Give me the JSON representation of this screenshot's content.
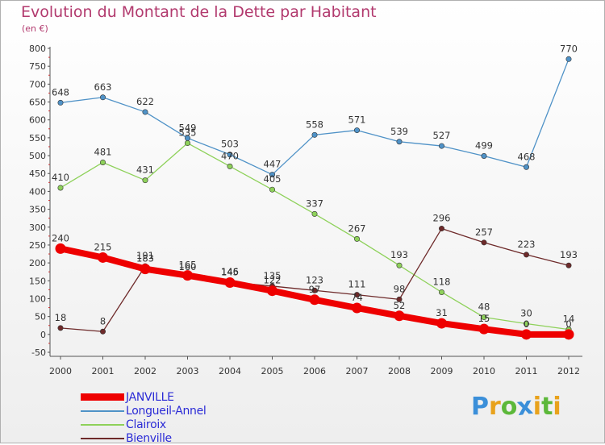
{
  "title": "Evolution du Montant de la Dette par Habitant",
  "subtitle": "(en €)",
  "logo": {
    "text": "Proxiti",
    "letters": [
      "P",
      "r",
      "o",
      "x",
      "i",
      "t",
      "i"
    ],
    "colors": [
      "#3b8fd9",
      "#e8a21c",
      "#5cb83a",
      "#3b8fd9",
      "#e8a21c",
      "#5cb83a",
      "#e8a21c"
    ]
  },
  "chart_data": {
    "type": "line",
    "title": "Evolution du Montant de la Dette par Habitant",
    "ylabel": "(en €)",
    "xlabel": "",
    "ylim": [
      -50,
      800
    ],
    "yticks": [
      -50,
      0,
      50,
      100,
      150,
      200,
      250,
      300,
      350,
      400,
      450,
      500,
      550,
      600,
      650,
      700,
      750,
      800
    ],
    "categories": [
      "2000",
      "2001",
      "2002",
      "2003",
      "2004",
      "2005",
      "2006",
      "2007",
      "2008",
      "2009",
      "2010",
      "2011",
      "2012"
    ],
    "series": [
      {
        "name": "JANVILLE",
        "color": "#ee0000",
        "thick": true,
        "values": [
          240,
          215,
          183,
          165,
          145,
          122,
          97,
          74,
          52,
          31,
          15,
          0,
          0
        ],
        "labels": [
          "240",
          "215",
          "183",
          "165",
          "145",
          "122",
          "97",
          "74",
          "52",
          "31",
          "15",
          "0",
          "0"
        ]
      },
      {
        "name": "Longueil-Annel",
        "color": "#4f92c7",
        "thick": false,
        "values": [
          648,
          663,
          622,
          549,
          503,
          447,
          558,
          571,
          539,
          527,
          499,
          468,
          770
        ],
        "labels": [
          "648",
          "663",
          "622",
          "549",
          "503",
          "447",
          "558",
          "571",
          "539",
          "527",
          "499",
          "468",
          "770"
        ]
      },
      {
        "name": "Clairoix",
        "color": "#8ed15a",
        "thick": false,
        "values": [
          410,
          481,
          431,
          535,
          470,
          405,
          337,
          267,
          193,
          118,
          48,
          30,
          14
        ],
        "labels": [
          "410",
          "481",
          "431",
          "535",
          "470",
          "405",
          "337",
          "267",
          "193",
          "118",
          "48",
          "30",
          "14"
        ]
      },
      {
        "name": "Bienville",
        "color": "#6e2a2a",
        "thick": false,
        "values": [
          18,
          8,
          191,
          160,
          146,
          135,
          123,
          111,
          98,
          296,
          257,
          223,
          193
        ],
        "labels": [
          "18",
          "8",
          "191",
          "160",
          "146",
          "135",
          "123",
          "111",
          "98",
          "296",
          "257",
          "223",
          "193"
        ]
      }
    ],
    "legend": "bottom-left",
    "grid": false
  }
}
